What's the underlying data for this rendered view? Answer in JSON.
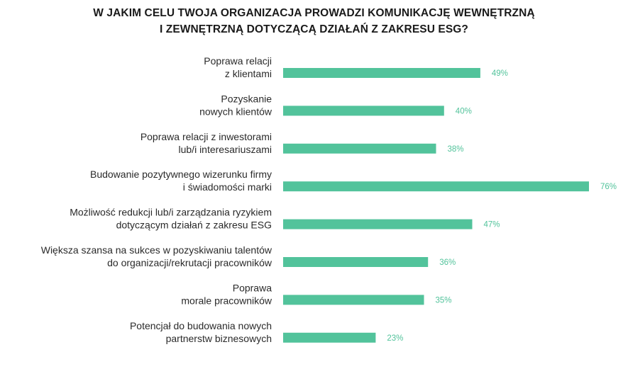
{
  "chart_data": {
    "type": "bar",
    "orientation": "horizontal",
    "title": "W JAKIM CELU TWOJA ORGANIZACJA PROWADZI KOMUNIKACJĘ WEWNĘTRZNĄ I ZEWNĘTRZNĄ DOTYCZĄCĄ DZIAŁAŃ Z ZAKRESU ESG?",
    "title_lines": [
      "W JAKIM CELU TWOJA ORGANIZACJA PROWADZI KOMUNIKACJĘ WEWNĘTRZNĄ",
      "I ZEWNĘTRZNĄ DOTYCZĄCĄ DZIAŁAŃ Z ZAKRESU ESG?"
    ],
    "categories": [
      [
        "Poprawa relacji",
        "z klientami"
      ],
      [
        "Pozyskanie",
        "nowych klientów"
      ],
      [
        "Poprawa relacji z inwestorami",
        "lub/i interesariuszami"
      ],
      [
        "Budowanie pozytywnego wizerunku firmy",
        "i świadomości marki"
      ],
      [
        "Możliwość redukcji lub/i zarządzania ryzykiem",
        "dotyczącym działań z zakresu ESG"
      ],
      [
        "Większa szansa na sukces w pozyskiwaniu talentów",
        "do organizacji/rekrutacji pracowników"
      ],
      [
        "Poprawa",
        "morale pracowników"
      ],
      [
        "Potencjał do budowania nowych",
        "partnerstw biznesowych"
      ]
    ],
    "values": [
      49,
      40,
      38,
      76,
      47,
      36,
      35,
      23
    ],
    "value_labels": [
      "49%",
      "40%",
      "38%",
      "76%",
      "47%",
      "36%",
      "35%",
      "23%"
    ],
    "unit": "%",
    "xlim": [
      0,
      76
    ],
    "grid": false,
    "legend": "none",
    "bar_color": "#52c39b",
    "label_color": "#52c39b",
    "text_color": "#2a2a2a"
  }
}
